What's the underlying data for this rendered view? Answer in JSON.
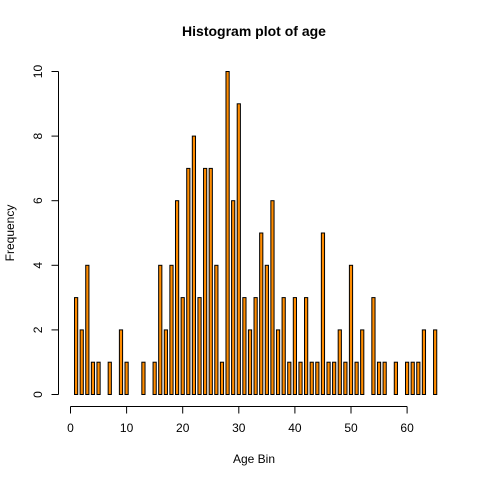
{
  "chart_data": {
    "type": "bar",
    "title": "Histogram plot of age",
    "xlabel": "Age Bin",
    "ylabel": "Frequency",
    "xlim": [
      0,
      65
    ],
    "ylim": [
      0,
      10
    ],
    "x_ticks": [
      0,
      10,
      20,
      30,
      40,
      50,
      60
    ],
    "y_ticks": [
      0,
      2,
      4,
      6,
      8,
      10
    ],
    "grid": false,
    "bar_color": "#FF8C00",
    "edge_color": "#000000",
    "x": [
      1,
      2,
      3,
      4,
      5,
      6,
      7,
      8,
      9,
      10,
      11,
      12,
      13,
      14,
      15,
      16,
      17,
      18,
      19,
      20,
      21,
      22,
      23,
      24,
      25,
      26,
      27,
      28,
      29,
      30,
      31,
      32,
      33,
      34,
      35,
      36,
      37,
      38,
      39,
      40,
      41,
      42,
      43,
      44,
      45,
      46,
      47,
      48,
      49,
      50,
      51,
      52,
      53,
      54,
      55,
      56,
      57,
      58,
      59,
      60,
      61,
      62,
      63,
      64,
      65
    ],
    "values": [
      3,
      2,
      4,
      1,
      1,
      0,
      1,
      0,
      2,
      1,
      0,
      0,
      1,
      0,
      1,
      4,
      2,
      4,
      6,
      3,
      7,
      8,
      3,
      7,
      7,
      4,
      1,
      10,
      6,
      9,
      3,
      2,
      3,
      5,
      4,
      6,
      2,
      3,
      1,
      3,
      1,
      3,
      1,
      1,
      5,
      1,
      1,
      2,
      1,
      4,
      1,
      2,
      0,
      3,
      1,
      1,
      0,
      1,
      0,
      1,
      1,
      1,
      2,
      0,
      2
    ]
  }
}
